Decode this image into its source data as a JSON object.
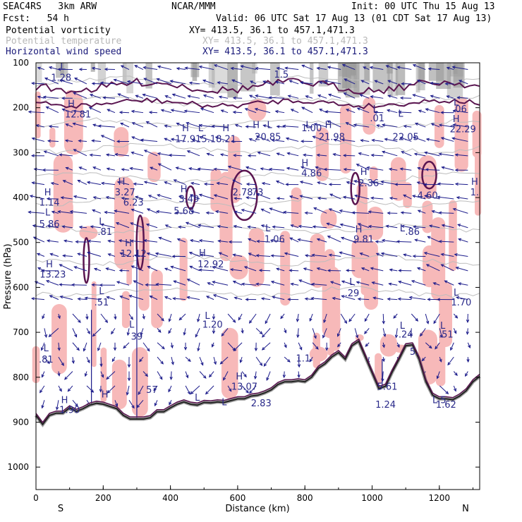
{
  "header": {
    "model": "SEAC4RS   3km ARW",
    "org": "NCAR/MMM",
    "init": "Init: 00 UTC Thu 15 Aug 13",
    "fcst": "Fcst:   54 h",
    "valid": "Valid: 06 UTC Sat 17 Aug 13 (01 CDT Sat 17 Aug 13)",
    "fields": [
      {
        "name": "Potential vorticity",
        "xy": "XY= 413.5, 36.1 to 457.1,471.3",
        "color": "#000000"
      },
      {
        "name": "Potential temperature",
        "xy": "XY= 413.5, 36.1 to 457.1,471.3",
        "color": "#b8b8b8"
      },
      {
        "name": "Horizontal wind speed",
        "xy": "XY= 413.5, 36.1 to 457.1,471.3",
        "color": "#1a1a7a"
      }
    ]
  },
  "colors": {
    "pv_fill": "#f7b9b9",
    "pv_line": "#5a1550",
    "theta_line": "#bdbdbd",
    "wind": "#1a1a8a",
    "terrain": "#222222",
    "stratosphere": "#9a9a9a"
  },
  "chart_data": {
    "type": "cross-section",
    "xlabel": "Distance (km)",
    "ylabel": "Pressure (hPa)",
    "xlim": [
      0,
      1320
    ],
    "ylim": [
      100,
      1050
    ],
    "x_ticks": [
      0,
      200,
      400,
      600,
      800,
      1000,
      1200
    ],
    "y_ticks": [
      100,
      200,
      300,
      400,
      500,
      600,
      700,
      800,
      900,
      1000
    ],
    "x_end_labels": {
      "left": "S",
      "right": "N"
    },
    "terrain_surface": [
      [
        0,
        885
      ],
      [
        20,
        905
      ],
      [
        40,
        885
      ],
      [
        60,
        880
      ],
      [
        80,
        880
      ],
      [
        100,
        868
      ],
      [
        120,
        876
      ],
      [
        140,
        870
      ],
      [
        160,
        862
      ],
      [
        180,
        858
      ],
      [
        200,
        860
      ],
      [
        220,
        865
      ],
      [
        240,
        870
      ],
      [
        260,
        885
      ],
      [
        280,
        893
      ],
      [
        300,
        893
      ],
      [
        320,
        893
      ],
      [
        340,
        890
      ],
      [
        360,
        877
      ],
      [
        380,
        877
      ],
      [
        400,
        868
      ],
      [
        420,
        860
      ],
      [
        440,
        855
      ],
      [
        460,
        860
      ],
      [
        480,
        862
      ],
      [
        500,
        856
      ],
      [
        520,
        857
      ],
      [
        540,
        855
      ],
      [
        560,
        856
      ],
      [
        580,
        852
      ],
      [
        600,
        848
      ],
      [
        620,
        848
      ],
      [
        640,
        842
      ],
      [
        660,
        840
      ],
      [
        680,
        835
      ],
      [
        700,
        828
      ],
      [
        720,
        816
      ],
      [
        740,
        810
      ],
      [
        760,
        810
      ],
      [
        780,
        808
      ],
      [
        800,
        810
      ],
      [
        820,
        800
      ],
      [
        840,
        780
      ],
      [
        860,
        770
      ],
      [
        880,
        755
      ],
      [
        900,
        745
      ],
      [
        920,
        760
      ],
      [
        940,
        730
      ],
      [
        960,
        720
      ],
      [
        980,
        755
      ],
      [
        1000,
        790
      ],
      [
        1020,
        825
      ],
      [
        1040,
        820
      ],
      [
        1060,
        788
      ],
      [
        1080,
        760
      ],
      [
        1100,
        730
      ],
      [
        1120,
        728
      ],
      [
        1140,
        760
      ],
      [
        1160,
        810
      ],
      [
        1180,
        840
      ],
      [
        1200,
        848
      ],
      [
        1220,
        848
      ],
      [
        1240,
        850
      ],
      [
        1260,
        842
      ],
      [
        1280,
        830
      ],
      [
        1300,
        810
      ],
      [
        1320,
        798
      ]
    ],
    "annotations": [
      {
        "t": "H",
        "x": 105,
        "p": 198
      },
      {
        "t": "12.81",
        "x": 125,
        "p": 222
      },
      {
        "t": "L",
        "x": 80,
        "p": 115
      },
      {
        "t": "1.28",
        "x": 75,
        "p": 140
      },
      {
        "t": "H",
        "x": 445,
        "p": 252
      },
      {
        "t": "L",
        "x": 490,
        "p": 252
      },
      {
        "t": "H",
        "x": 565,
        "p": 252
      },
      {
        "t": "17.915.18.21",
        "x": 505,
        "p": 277
      },
      {
        "t": "H",
        "x": 655,
        "p": 245
      },
      {
        "t": "L",
        "x": 695,
        "p": 245
      },
      {
        "t": "20.85",
        "x": 690,
        "p": 272
      },
      {
        "t": "L",
        "x": 810,
        "p": 245
      },
      {
        "t": "H",
        "x": 870,
        "p": 245
      },
      {
        "t": "1.00",
        "x": 820,
        "p": 252
      },
      {
        "t": "21.98",
        "x": 880,
        "p": 272
      },
      {
        "t": "1.5",
        "x": 730,
        "p": 133
      },
      {
        "t": "L",
        "x": 1010,
        "p": 210
      },
      {
        "t": ".01",
        "x": 1015,
        "p": 230
      },
      {
        "t": "L",
        "x": 1085,
        "p": 220
      },
      {
        "t": "22.05",
        "x": 1100,
        "p": 272
      },
      {
        "t": "L",
        "x": 1250,
        "p": 195
      },
      {
        "t": ".06",
        "x": 1260,
        "p": 210
      },
      {
        "t": "H",
        "x": 1250,
        "p": 232
      },
      {
        "t": "22.29",
        "x": 1270,
        "p": 255
      },
      {
        "t": "H",
        "x": 800,
        "p": 330
      },
      {
        "t": "4.86",
        "x": 820,
        "p": 353
      },
      {
        "t": "H",
        "x": 975,
        "p": 350
      },
      {
        "t": "2.36",
        "x": 990,
        "p": 375
      },
      {
        "t": "H",
        "x": 255,
        "p": 372
      },
      {
        "t": "3.27",
        "x": 265,
        "p": 395
      },
      {
        "t": "6.23",
        "x": 290,
        "p": 418
      },
      {
        "t": "H",
        "x": 440,
        "p": 388
      },
      {
        "t": "3.49",
        "x": 455,
        "p": 410
      },
      {
        "t": "2.78",
        "x": 615,
        "p": 395
      },
      {
        "t": ".73",
        "x": 655,
        "p": 395
      },
      {
        "t": "4.60",
        "x": 1165,
        "p": 402
      },
      {
        "t": "H",
        "x": 1305,
        "p": 372
      },
      {
        "t": "1.",
        "x": 1305,
        "p": 395
      },
      {
        "t": "H",
        "x": 35,
        "p": 395
      },
      {
        "t": "1.14",
        "x": 40,
        "p": 418
      },
      {
        "t": "L",
        "x": 35,
        "p": 440
      },
      {
        "t": "5.86",
        "x": 40,
        "p": 466
      },
      {
        "t": "L",
        "x": 195,
        "p": 460
      },
      {
        "t": ".81",
        "x": 205,
        "p": 483
      },
      {
        "t": "5.68",
        "x": 440,
        "p": 437
      },
      {
        "t": "L",
        "x": 690,
        "p": 475
      },
      {
        "t": "1.06",
        "x": 710,
        "p": 500
      },
      {
        "t": "H",
        "x": 960,
        "p": 478
      },
      {
        "t": "9.81",
        "x": 975,
        "p": 500
      },
      {
        "t": "L",
        "x": 1090,
        "p": 475
      },
      {
        "t": ".86",
        "x": 1120,
        "p": 483
      },
      {
        "t": "H",
        "x": 275,
        "p": 508
      },
      {
        "t": "12.12",
        "x": 290,
        "p": 532
      },
      {
        "t": "H",
        "x": 495,
        "p": 530
      },
      {
        "t": "12.92",
        "x": 520,
        "p": 555
      },
      {
        "t": "H",
        "x": 40,
        "p": 555
      },
      {
        "t": "13.23",
        "x": 50,
        "p": 578
      },
      {
        "t": "L",
        "x": 940,
        "p": 595
      },
      {
        "t": ".29",
        "x": 940,
        "p": 620
      },
      {
        "t": "L",
        "x": 195,
        "p": 615
      },
      {
        "t": ".51",
        "x": 195,
        "p": 640
      },
      {
        "t": "L",
        "x": 1250,
        "p": 618
      },
      {
        "t": "1.70",
        "x": 1265,
        "p": 640
      },
      {
        "t": "L",
        "x": 510,
        "p": 670
      },
      {
        "t": "1.20",
        "x": 525,
        "p": 690
      },
      {
        "t": "L",
        "x": 285,
        "p": 690
      },
      {
        "t": "39",
        "x": 300,
        "p": 716
      },
      {
        "t": "L",
        "x": 1090,
        "p": 692
      },
      {
        "t": ".24",
        "x": 1100,
        "p": 712
      },
      {
        "t": "L",
        "x": 1210,
        "p": 692
      },
      {
        "t": ".51",
        "x": 1220,
        "p": 712
      },
      {
        "t": "L",
        "x": 30,
        "p": 742
      },
      {
        "t": ".81",
        "x": 30,
        "p": 767
      },
      {
        "t": "1.1",
        "x": 795,
        "p": 765
      },
      {
        "t": "5.",
        "x": 1125,
        "p": 750
      },
      {
        "t": "H",
        "x": 605,
        "p": 805
      },
      {
        "t": "13.07",
        "x": 620,
        "p": 828
      },
      {
        "t": "5.61",
        "x": 1045,
        "p": 828
      },
      {
        "t": "H",
        "x": 85,
        "p": 858
      },
      {
        "t": "1.90",
        "x": 100,
        "p": 880
      },
      {
        "t": "H",
        "x": 205,
        "p": 845
      },
      {
        "t": "57",
        "x": 345,
        "p": 835
      },
      {
        "t": "L",
        "x": 480,
        "p": 852
      },
      {
        "t": "L",
        "x": 560,
        "p": 862
      },
      {
        "t": "2.83",
        "x": 670,
        "p": 865
      },
      {
        "t": "1.24",
        "x": 1040,
        "p": 868
      },
      {
        "t": "L.5",
        "x": 1200,
        "p": 858
      },
      {
        "t": "1.62",
        "x": 1220,
        "p": 868
      }
    ]
  }
}
